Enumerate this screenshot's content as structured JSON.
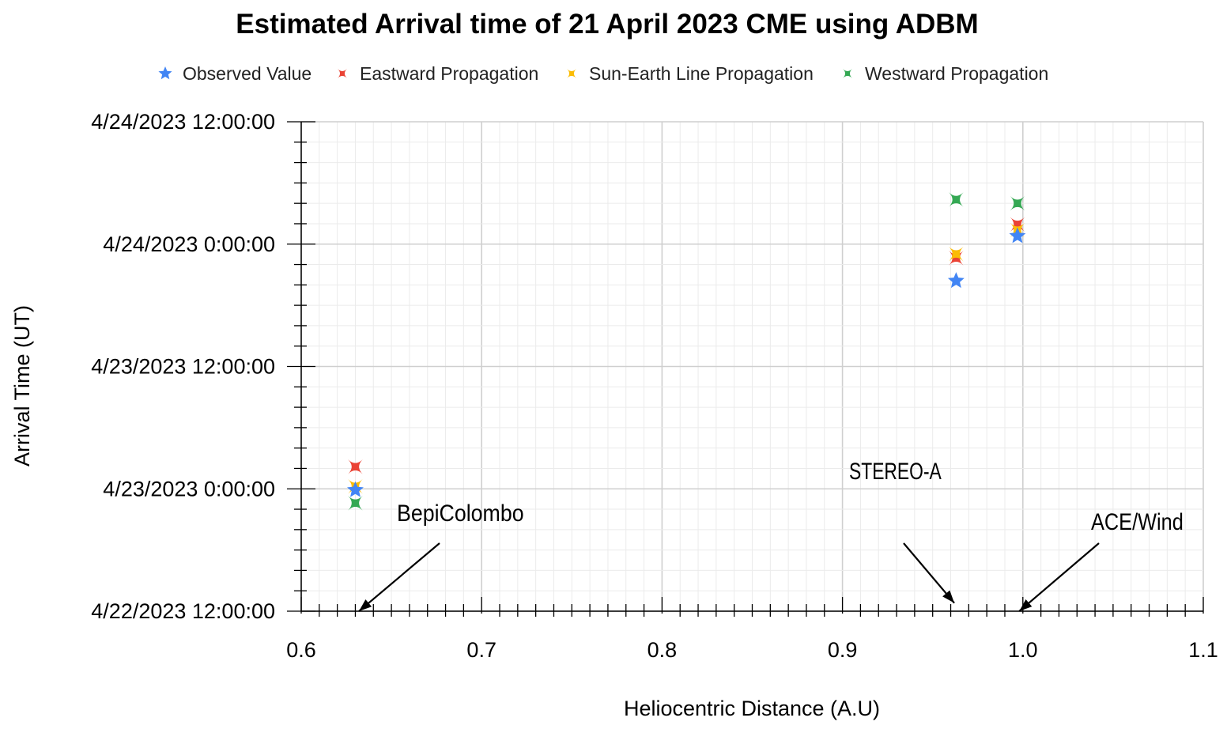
{
  "chart_data": {
    "type": "scatter",
    "title": "Estimated Arrival time of 21 April 2023 CME using ADBM",
    "xlabel": "Heliocentric Distance (A.U)",
    "ylabel": "Arrival Time (UT)",
    "xlim": [
      0.6,
      1.1
    ],
    "ylim": [
      "2023-04-22 12:00",
      "2023-04-24 12:00"
    ],
    "x_ticks": [
      {
        "value": 0.6,
        "label": "0.6"
      },
      {
        "value": 0.7,
        "label": "0.7"
      },
      {
        "value": 0.8,
        "label": "0.8"
      },
      {
        "value": 0.9,
        "label": "0.9"
      },
      {
        "value": 1.0,
        "label": "1.0"
      },
      {
        "value": 1.1,
        "label": "1.1"
      }
    ],
    "y_ticks": [
      {
        "value": "2023-04-22 12:00",
        "label": "4/22/2023 12:00:00"
      },
      {
        "value": "2023-04-23 00:00",
        "label": "4/23/2023 0:00:00"
      },
      {
        "value": "2023-04-23 12:00",
        "label": "4/23/2023 12:00:00"
      },
      {
        "value": "2023-04-24 00:00",
        "label": "4/24/2023 0:00:00"
      },
      {
        "value": "2023-04-24 12:00",
        "label": "4/24/2023 12:00:00"
      }
    ],
    "grid": true,
    "legend_position": "top",
    "series": [
      {
        "name": "Observed Value",
        "color": "#4285f4",
        "marker": "star",
        "points": [
          {
            "x": 0.63,
            "y": "2023-04-22 23:53"
          },
          {
            "x": 0.963,
            "y": "2023-04-23 20:24"
          },
          {
            "x": 0.997,
            "y": "2023-04-24 00:48"
          }
        ]
      },
      {
        "name": "Eastward Propagation",
        "color": "#ea4335",
        "marker": "x",
        "points": [
          {
            "x": 0.63,
            "y": "2023-04-23 02:10"
          },
          {
            "x": 0.963,
            "y": "2023-04-23 22:38"
          },
          {
            "x": 0.997,
            "y": "2023-04-24 01:56"
          }
        ]
      },
      {
        "name": "Sun-Earth Line Propagation",
        "color": "#fbbc04",
        "marker": "x",
        "points": [
          {
            "x": 0.63,
            "y": "2023-04-23 00:14"
          },
          {
            "x": 0.963,
            "y": "2023-04-23 23:02"
          },
          {
            "x": 0.997,
            "y": "2023-04-24 01:22"
          }
        ]
      },
      {
        "name": "Westward Propagation",
        "color": "#34a853",
        "marker": "x",
        "points": [
          {
            "x": 0.63,
            "y": "2023-04-22 22:36"
          },
          {
            "x": 0.963,
            "y": "2023-04-24 04:22"
          },
          {
            "x": 0.997,
            "y": "2023-04-24 04:00"
          }
        ]
      }
    ],
    "annotations": [
      {
        "text": "BepiColombo",
        "arrow_to": {
          "x": 0.632,
          "y": "2023-04-22 12:00"
        }
      },
      {
        "text": "STEREO-A",
        "arrow_to": {
          "x": 0.962,
          "y": "2023-04-22 12:48"
        }
      },
      {
        "text": "ACE/Wind",
        "arrow_to": {
          "x": 0.998,
          "y": "2023-04-22 12:00"
        }
      }
    ]
  }
}
